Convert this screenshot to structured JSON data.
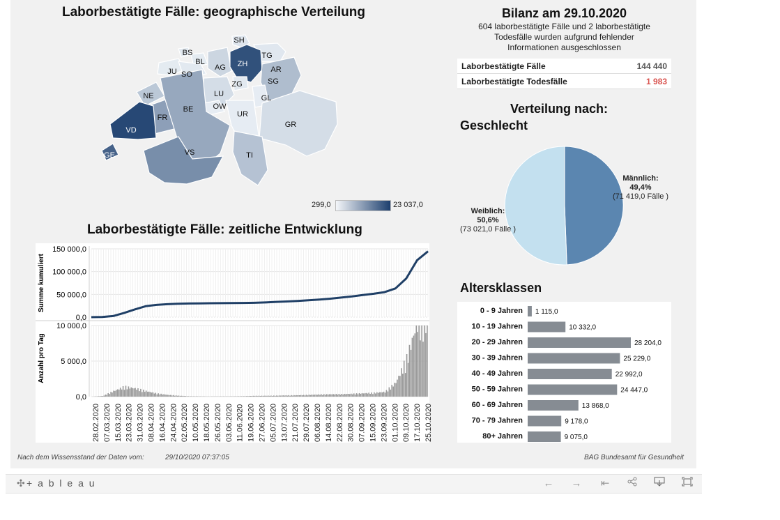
{
  "map": {
    "title": "Laborbestätigte Fälle: geographische Verteilung",
    "legend_min": "299,0",
    "legend_max": "23 037,0",
    "cantons": [
      {
        "code": "SH",
        "value": 5
      },
      {
        "code": "BS",
        "value": 3
      },
      {
        "code": "BL",
        "value": 2
      },
      {
        "code": "TG",
        "value": 4
      },
      {
        "code": "AG",
        "value": 14
      },
      {
        "code": "ZH",
        "value": 90
      },
      {
        "code": "JU",
        "value": 2
      },
      {
        "code": "SO",
        "value": 3
      },
      {
        "code": "AR",
        "value": 8
      },
      {
        "code": "SG",
        "value": 28
      },
      {
        "code": "NE",
        "value": 22
      },
      {
        "code": "LU",
        "value": 10
      },
      {
        "code": "ZG",
        "value": 3
      },
      {
        "code": "GL",
        "value": 1
      },
      {
        "code": "OW",
        "value": 1
      },
      {
        "code": "FR",
        "value": 45
      },
      {
        "code": "BE",
        "value": 40
      },
      {
        "code": "UR",
        "value": 1
      },
      {
        "code": "GR",
        "value": 10
      },
      {
        "code": "VD",
        "value": 95
      },
      {
        "code": "GE",
        "value": 80
      },
      {
        "code": "VS",
        "value": 55
      },
      {
        "code": "TI",
        "value": 25
      }
    ]
  },
  "timeline": {
    "title": "Laborbestätigte Fälle: zeitliche Entwicklung",
    "cum_ylabel": "Summe kumuliert",
    "daily_ylabel": "Anzahl pro Tag",
    "cum_ticks": [
      "150 000,0",
      "100 000,0",
      "50 000,0",
      "0,0"
    ],
    "daily_ticks": [
      "10 000,0",
      "5 000,0",
      "0,0"
    ],
    "dates": [
      "28.02.2020",
      "07.03.2020",
      "15.03.2020",
      "23.03.2020",
      "31.03.2020",
      "08.04.2020",
      "16.04.2020",
      "24.04.2020",
      "02.05.2020",
      "10.05.2020",
      "18.05.2020",
      "26.05.2020",
      "03.06.2020",
      "11.06.2020",
      "19.06.2020",
      "27.06.2020",
      "05.07.2020",
      "13.07.2020",
      "21.07.2020",
      "29.07.2020",
      "06.08.2020",
      "14.08.2020",
      "22.08.2020",
      "30.08.2020",
      "07.09.2020",
      "15.09.2020",
      "23.09.2020",
      "01.10.2020",
      "09.10.2020",
      "17.10.2020",
      "25.10.2020"
    ]
  },
  "chart_data": [
    {
      "type": "line",
      "title": "Laborbestätigte Fälle: zeitliche Entwicklung",
      "ylabel": "Summe kumuliert",
      "ylim": [
        0,
        150000
      ],
      "x": [
        "28.02.2020",
        "07.03.2020",
        "15.03.2020",
        "23.03.2020",
        "31.03.2020",
        "08.04.2020",
        "16.04.2020",
        "24.04.2020",
        "02.05.2020",
        "10.05.2020",
        "18.05.2020",
        "26.05.2020",
        "03.06.2020",
        "11.06.2020",
        "19.06.2020",
        "27.06.2020",
        "05.07.2020",
        "13.07.2020",
        "21.07.2020",
        "29.07.2020",
        "06.08.2020",
        "14.08.2020",
        "22.08.2020",
        "30.08.2020",
        "07.09.2020",
        "15.09.2020",
        "23.09.2020",
        "01.10.2020",
        "09.10.2020",
        "17.10.2020",
        "25.10.2020",
        "29.10.2020"
      ],
      "values": [
        0,
        500,
        2500,
        9000,
        17000,
        24000,
        27000,
        28500,
        29500,
        30000,
        30300,
        30600,
        30800,
        31000,
        31200,
        31600,
        32300,
        33500,
        34500,
        35500,
        37000,
        38500,
        40500,
        43000,
        45500,
        48500,
        51500,
        55000,
        63000,
        85000,
        125000,
        144440
      ]
    },
    {
      "type": "bar",
      "ylabel": "Anzahl pro Tag",
      "ylim": [
        0,
        10000
      ],
      "x": [
        "28.02.2020",
        "07.03.2020",
        "15.03.2020",
        "23.03.2020",
        "31.03.2020",
        "08.04.2020",
        "16.04.2020",
        "24.04.2020",
        "02.05.2020",
        "10.05.2020",
        "18.05.2020",
        "26.05.2020",
        "03.06.2020",
        "11.06.2020",
        "19.06.2020",
        "27.06.2020",
        "05.07.2020",
        "13.07.2020",
        "21.07.2020",
        "29.07.2020",
        "06.08.2020",
        "14.08.2020",
        "22.08.2020",
        "30.08.2020",
        "07.09.2020",
        "15.09.2020",
        "23.09.2020",
        "01.10.2020",
        "09.10.2020",
        "17.10.2020",
        "25.10.2020"
      ],
      "values": [
        5,
        80,
        700,
        1250,
        1050,
        700,
        400,
        220,
        120,
        50,
        30,
        25,
        30,
        35,
        60,
        100,
        110,
        130,
        160,
        180,
        220,
        270,
        300,
        320,
        360,
        420,
        480,
        600,
        1800,
        4800,
        9600
      ]
    },
    {
      "type": "pie",
      "title": "Verteilung nach: Geschlecht",
      "categories": [
        "Männlich",
        "Weiblich"
      ],
      "values": [
        49.4,
        50.6
      ],
      "counts": [
        71419,
        73021
      ],
      "colors": [
        "#5b86b0",
        "#c3e0ef"
      ]
    },
    {
      "type": "bar",
      "title": "Altersklassen",
      "categories": [
        "0 - 9 Jahren",
        "10 - 19 Jahren",
        "20 - 29 Jahren",
        "30 - 39 Jahren",
        "40 - 49 Jahren",
        "50 - 59 Jahren",
        "60 - 69 Jahren",
        "70 - 79 Jahren",
        "80+ Jahren"
      ],
      "values": [
        1115,
        10332,
        28204,
        25229,
        22992,
        24447,
        13868,
        9178,
        9075
      ],
      "labels": [
        "1 115,0",
        "10 332,0",
        "28 204,0",
        "25 229,0",
        "22 992,0",
        "24 447,0",
        "13 868,0",
        "9 178,0",
        "9 075,0"
      ]
    }
  ],
  "bilanz": {
    "title": "Bilanz am 29.10.2020",
    "note_lines": [
      "604 laborbestätigte Fälle und 2 laborbestätigte",
      "Todesfälle wurden aufgrund fehlender",
      "Informationen ausgeschlossen"
    ],
    "rows": [
      {
        "label": "Laborbestätigte Fälle",
        "value": "144 440",
        "color": "#555555"
      },
      {
        "label": "Laborbestätigte Todesfälle",
        "value": "1 983",
        "color": "#d9534f"
      }
    ]
  },
  "gender": {
    "title_line1": "Verteilung nach:",
    "title_line2": "Geschlecht",
    "male": {
      "label": "Männlich:",
      "pct": "49,4%",
      "count": "(71 419,0 Fälle )"
    },
    "female": {
      "label": "Weiblich:",
      "pct": "50,6%",
      "count": "(73 021,0 Fälle )"
    }
  },
  "age": {
    "title": "Altersklassen"
  },
  "footer": {
    "left_label": "Nach dem Wissensstand der Daten vom:",
    "timestamp": "29/10/2020 07:37:05",
    "source": "BAG Bundesamt für Gesundheit"
  },
  "toolbar": {
    "logo": "+ a b l e a u",
    "icons": [
      "undo-icon",
      "redo-icon",
      "revert-icon",
      "share-icon",
      "download-icon",
      "fullscreen-icon"
    ]
  }
}
